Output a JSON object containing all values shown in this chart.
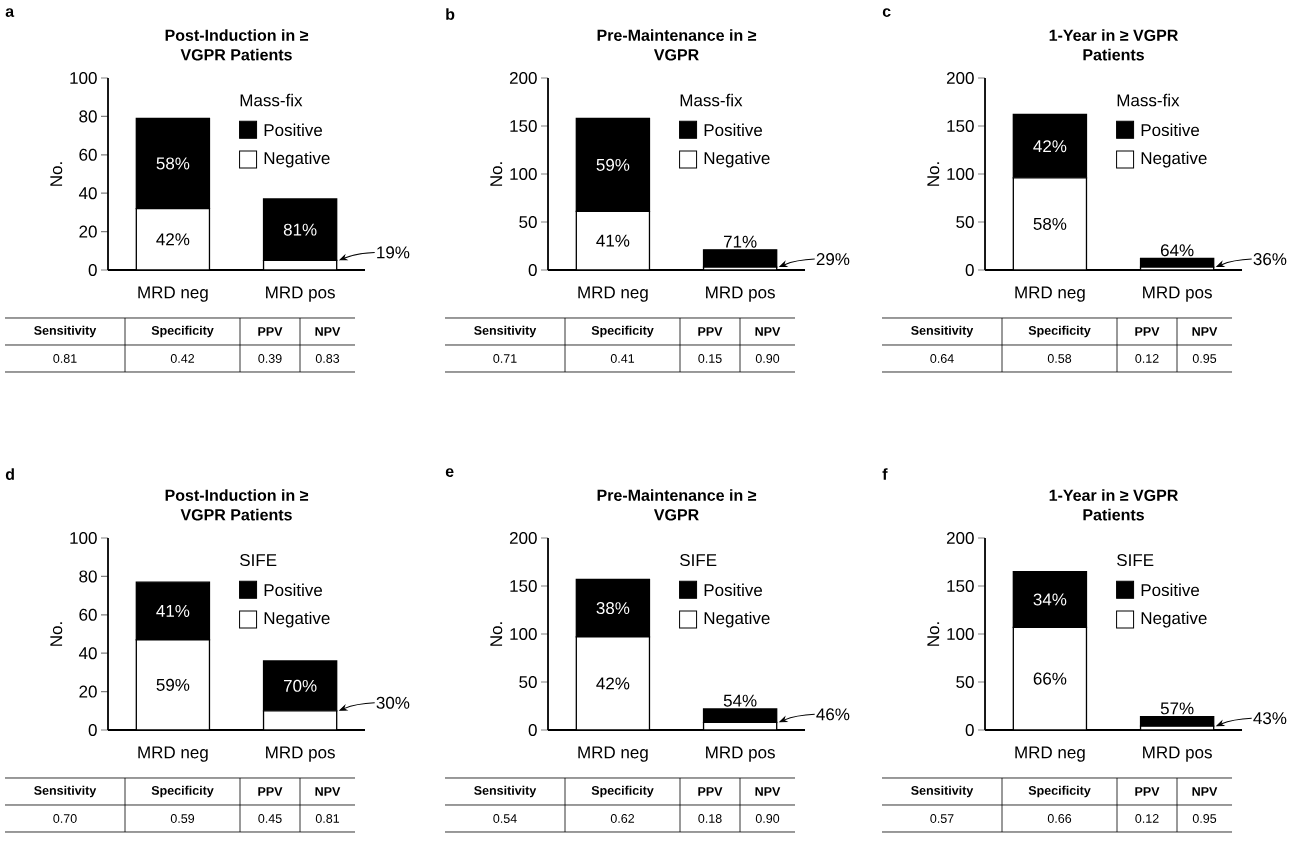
{
  "chart_data": [
    {
      "type": "bar",
      "stacked": true,
      "title": "Post-Induction in ≥ VGPR Patients",
      "ylabel": "No.",
      "legend_title": "Mass-fix",
      "legend": "top right",
      "categories": [
        "MRD neg",
        "MRD pos"
      ],
      "ylim": [
        0,
        100
      ],
      "yticks": [
        0,
        20,
        40,
        60,
        80,
        100
      ],
      "series": [
        {
          "name": "Negative",
          "color": "#ffffff",
          "values": [
            32,
            5
          ]
        },
        {
          "name": "Positive",
          "color": "#000000",
          "values": [
            47,
            32
          ]
        }
      ],
      "annotations": [
        "a",
        "Sensitivity",
        "Specificity",
        "PPV",
        "NPV",
        "0.81",
        "0.42",
        "0.39",
        "0.83",
        {
          "text": "42%",
          "x": "MRD neg",
          "y": 32
        },
        "19%",
        {
          "text": "58%",
          "x": "MRD neg",
          "y": 79
        },
        {
          "text": "81%",
          "x": "MRD pos",
          "y": 37
        }
      ]
    },
    {
      "type": "bar",
      "stacked": true,
      "title": "Pre-Maintenance in ≥ VGPR",
      "ylabel": "No.",
      "legend_title": "Mass-fix",
      "legend": "top right",
      "categories": [
        "MRD neg",
        "MRD pos"
      ],
      "ylim": [
        0,
        200
      ],
      "yticks": [
        0,
        50,
        100,
        150,
        200
      ],
      "series": [
        {
          "name": "Negative",
          "color": "#ffffff",
          "values": [
            61,
            3
          ]
        },
        {
          "name": "Positive",
          "color": "#000000",
          "values": [
            97,
            18
          ]
        }
      ],
      "annotations": [
        "b",
        "Sensitivity",
        "Specificity",
        "PPV",
        "NPV",
        "0.71",
        "0.41",
        "0.15",
        "0.90",
        {
          "text": "41%",
          "x": "MRD neg",
          "y": 61
        },
        "29%",
        {
          "text": "59%",
          "x": "MRD neg",
          "y": 158
        },
        {
          "text": "71%",
          "x": "MRD pos",
          "y": 21
        }
      ]
    },
    {
      "type": "bar",
      "stacked": true,
      "title": "1-Year in ≥ VGPR Patients",
      "ylabel": "No.",
      "legend_title": "Mass-fix",
      "legend": "top right",
      "categories": [
        "MRD neg",
        "MRD pos"
      ],
      "ylim": [
        0,
        200
      ],
      "yticks": [
        0,
        50,
        100,
        150,
        200
      ],
      "series": [
        {
          "name": "Negative",
          "color": "#ffffff",
          "values": [
            96,
            3
          ]
        },
        {
          "name": "Positive",
          "color": "#000000",
          "values": [
            66,
            9
          ]
        }
      ],
      "annotations": [
        "c",
        "Sensitivity",
        "Specificity",
        "PPV",
        "NPV",
        "0.64",
        "0.58",
        "0.12",
        "0.95",
        {
          "text": "58%",
          "x": "MRD neg",
          "y": 96
        },
        "36%",
        {
          "text": "42%",
          "x": "MRD neg",
          "y": 162
        },
        {
          "text": "64%",
          "x": "MRD pos",
          "y": 12
        }
      ]
    },
    {
      "type": "bar",
      "stacked": true,
      "title": "Post-Induction in ≥ VGPR Patients",
      "ylabel": "No.",
      "legend_title": "SIFE",
      "legend": "top right",
      "categories": [
        "MRD neg",
        "MRD pos"
      ],
      "ylim": [
        0,
        100
      ],
      "yticks": [
        0,
        20,
        40,
        60,
        80,
        100
      ],
      "series": [
        {
          "name": "Negative",
          "color": "#ffffff",
          "values": [
            47,
            10
          ]
        },
        {
          "name": "Positive",
          "color": "#000000",
          "values": [
            30,
            26
          ]
        }
      ],
      "annotations": [
        "d",
        "Sensitivity",
        "Specificity",
        "PPV",
        "NPV",
        "0.70",
        "0.59",
        "0.45",
        "0.81",
        {
          "text": "59%",
          "x": "MRD neg",
          "y": 47
        },
        "30%",
        {
          "text": "41%",
          "x": "MRD neg",
          "y": 77
        },
        {
          "text": "70%",
          "x": "MRD pos",
          "y": 36
        }
      ]
    },
    {
      "type": "bar",
      "stacked": true,
      "title": "Pre-Maintenance in ≥ VGPR",
      "ylabel": "No.",
      "legend_title": "SIFE",
      "legend": "top right",
      "categories": [
        "MRD neg",
        "MRD pos"
      ],
      "ylim": [
        0,
        200
      ],
      "yticks": [
        0,
        50,
        100,
        150,
        200
      ],
      "series": [
        {
          "name": "Negative",
          "color": "#ffffff",
          "values": [
            97,
            8
          ]
        },
        {
          "name": "Positive",
          "color": "#000000",
          "values": [
            60,
            14
          ]
        }
      ],
      "annotations": [
        "e",
        "Sensitivity",
        "Specificity",
        "PPV",
        "NPV",
        "0.54",
        "0.62",
        "0.18",
        "0.90",
        {
          "text": "42%",
          "x": "MRD neg",
          "y": 97
        },
        "46%",
        {
          "text": "38%",
          "x": "MRD neg",
          "y": 157
        },
        {
          "text": "54%",
          "x": "MRD pos",
          "y": 22
        }
      ]
    },
    {
      "type": "bar",
      "stacked": true,
      "title": "1-Year in ≥ VGPR Patients",
      "ylabel": "No.",
      "legend_title": "SIFE",
      "legend": "top right",
      "categories": [
        "MRD neg",
        "MRD pos"
      ],
      "ylim": [
        0,
        200
      ],
      "yticks": [
        0,
        50,
        100,
        150,
        200
      ],
      "series": [
        {
          "name": "Negative",
          "color": "#ffffff",
          "values": [
            107,
            4
          ]
        },
        {
          "name": "Positive",
          "color": "#000000",
          "values": [
            58,
            10
          ]
        }
      ],
      "annotations": [
        "f",
        "Sensitivity",
        "Specificity",
        "PPV",
        "NPV",
        "0.57",
        "0.66",
        "0.12",
        "0.95",
        {
          "text": "66%",
          "x": "MRD neg",
          "y": 107
        },
        "43%",
        {
          "text": "34%",
          "x": "MRD neg",
          "y": 165
        },
        {
          "text": "57%",
          "x": "MRD pos",
          "y": 14
        }
      ]
    }
  ]
}
